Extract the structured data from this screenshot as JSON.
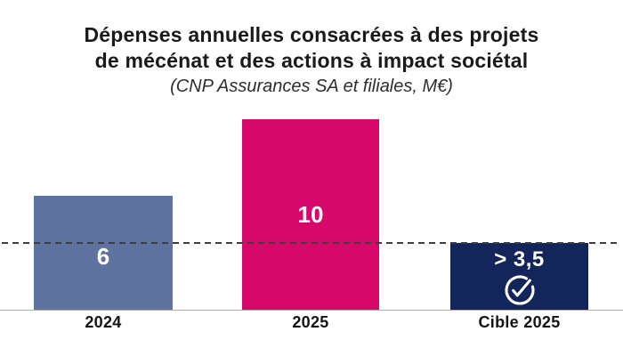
{
  "title": {
    "line1": "Dépenses annuelles consacrées à des projets",
    "line2": "de mécénat et des actions à impact sociétal",
    "subtitle": "(CNP Assurances SA et filiales, M€)"
  },
  "chart_data": {
    "type": "bar",
    "title": "Dépenses annuelles consacrées à des projets de mécénat et des actions à impact sociétal",
    "subtitle": "(CNP Assurances SA et filiales, M€)",
    "unit": "M€",
    "categories": [
      "2024",
      "2025",
      "Cible 2025"
    ],
    "values": [
      6,
      10,
      3.5
    ],
    "bar_labels": [
      "6",
      "10",
      "> 3,5"
    ],
    "bar_colors": [
      "#5F73A0",
      "#D6096B",
      "#13265C"
    ],
    "bar_icons": [
      null,
      null,
      "check-circle-icon"
    ],
    "ylim": [
      0,
      10
    ],
    "grid": false,
    "legend": false,
    "axis_line_color": "#ACACAC",
    "target_line": {
      "value": 3.5,
      "style": "dashed",
      "color": "#3D3D3D"
    }
  }
}
